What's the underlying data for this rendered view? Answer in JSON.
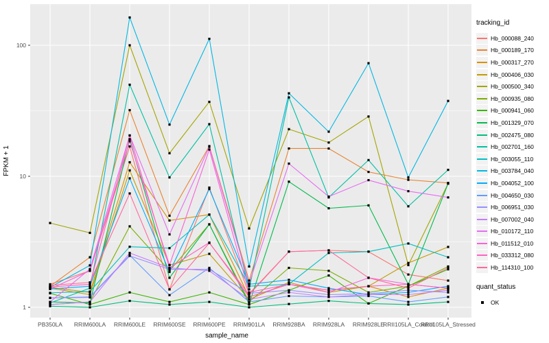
{
  "figure": {
    "bg": "#FFFFFF",
    "panel_bg": "#EBEBEB",
    "grid_color": "#FFFFFF",
    "axis_text_color": "#4D4D4D",
    "tick_color": "#333333",
    "point_color": "#000000"
  },
  "legend": {
    "tracking_title": "tracking_id",
    "quant_title": "quant_status",
    "quant_items": [
      {
        "label": "OK"
      }
    ]
  },
  "chart_data": {
    "type": "line",
    "xlabel": "sample_name",
    "ylabel": "FPKM + 1",
    "y_scale": "log10",
    "y_ticks": [
      1,
      10,
      100
    ],
    "y_tick_labels": [
      "1",
      "10",
      "100"
    ],
    "y_minor_ticks": [
      3.162,
      31.62
    ],
    "ylim_log": [
      -0.08,
      2.32
    ],
    "grid": true,
    "legend_position": "right",
    "marker": "square",
    "categories": [
      "PB350LA",
      "RRIM600LA",
      "RRIM600LE",
      "RRIM600SE",
      "RRIM600PE",
      "RRIM901LA",
      "RRIM928BA",
      "RRIM928LA",
      "RRIM928LE",
      "RRII105LA_Control",
      "RRII105LA_Stressed"
    ],
    "series": [
      {
        "name": "Hb_000088_240",
        "color": "#F8766D",
        "values": [
          1.5,
          1.9,
          16.9,
          1.37,
          8.2,
          1.27,
          2.66,
          2.72,
          2.66,
          1.78,
          1.6
        ]
      },
      {
        "name": "Hb_000189_170",
        "color": "#EA8331",
        "values": [
          1.45,
          2.41,
          32.0,
          5.0,
          17.0,
          1.6,
          16.3,
          16.3,
          10.8,
          9.4,
          8.9
        ]
      },
      {
        "name": "Hb_000317_270",
        "color": "#D89000",
        "values": [
          1.42,
          1.3,
          12.8,
          4.6,
          5.1,
          1.2,
          1.5,
          1.35,
          1.45,
          1.2,
          1.4
        ]
      },
      {
        "name": "Hb_000406_030",
        "color": "#C09B00",
        "values": [
          1.4,
          1.25,
          11.1,
          2.1,
          2.56,
          1.15,
          1.55,
          1.3,
          1.45,
          2.18,
          2.89
        ]
      },
      {
        "name": "Hb_000500_340",
        "color": "#A3A500",
        "values": [
          4.4,
          3.7,
          100.0,
          15.0,
          37.0,
          4.0,
          22.9,
          18.1,
          28.6,
          2.1,
          8.8
        ]
      },
      {
        "name": "Hb_000935_080",
        "color": "#7CAE00",
        "values": [
          1.05,
          1.1,
          4.15,
          1.9,
          4.3,
          1.1,
          2.0,
          1.9,
          1.3,
          1.45,
          2.05
        ]
      },
      {
        "name": "Hb_000941_060",
        "color": "#39B600",
        "values": [
          1.28,
          1.05,
          1.3,
          1.1,
          1.3,
          1.05,
          1.35,
          1.75,
          1.07,
          1.45,
          1.95
        ]
      },
      {
        "name": "Hb_001329_070",
        "color": "#00BB4E",
        "values": [
          1.1,
          1.08,
          19.2,
          1.68,
          4.3,
          1.06,
          9.1,
          5.7,
          6.0,
          1.5,
          8.8
        ]
      },
      {
        "name": "Hb_002475_080",
        "color": "#00BF7D",
        "values": [
          1.02,
          1.0,
          1.12,
          1.05,
          1.1,
          1.0,
          1.06,
          1.12,
          1.07,
          1.05,
          1.1
        ]
      },
      {
        "name": "Hb_002701_160",
        "color": "#00C1A3",
        "values": [
          1.08,
          1.4,
          50.0,
          9.8,
          25.0,
          1.37,
          40.0,
          6.9,
          13.3,
          5.9,
          11.2
        ]
      },
      {
        "name": "Hb_003055_110",
        "color": "#00BFC4",
        "values": [
          1.29,
          1.32,
          2.9,
          2.83,
          5.1,
          1.45,
          1.5,
          2.6,
          2.66,
          3.07,
          2.41
        ]
      },
      {
        "name": "Hb_003784_040",
        "color": "#00B8E3",
        "values": [
          1.42,
          2.09,
          163.0,
          24.8,
          112.0,
          2.05,
          43.0,
          21.9,
          73.0,
          9.8,
          37.6
        ]
      },
      {
        "name": "Hb_004052_100",
        "color": "#00ACFC",
        "values": [
          1.38,
          1.45,
          9.65,
          1.86,
          8.0,
          1.5,
          1.62,
          1.4,
          1.25,
          1.3,
          1.45
        ]
      },
      {
        "name": "Hb_004650_030",
        "color": "#619CFF",
        "values": [
          1.18,
          1.2,
          2.5,
          1.24,
          2.0,
          1.1,
          1.22,
          1.2,
          1.22,
          1.1,
          1.2
        ]
      },
      {
        "name": "Hb_006951_030",
        "color": "#9590FF",
        "values": [
          1.18,
          1.19,
          2.47,
          1.95,
          1.95,
          1.28,
          1.35,
          1.25,
          1.27,
          1.35,
          1.3
        ]
      },
      {
        "name": "Hb_007002_040",
        "color": "#C77CFF",
        "values": [
          1.05,
          1.1,
          2.6,
          2.0,
          1.9,
          1.15,
          1.3,
          1.2,
          1.25,
          1.25,
          1.35
        ]
      },
      {
        "name": "Hb_010172_110",
        "color": "#E76BF3",
        "values": [
          1.1,
          1.96,
          20.5,
          3.6,
          16.8,
          1.52,
          12.5,
          7.0,
          9.35,
          7.7,
          6.9
        ]
      },
      {
        "name": "Hb_011512_010",
        "color": "#FA62DB",
        "values": [
          1.38,
          1.9,
          18.5,
          2.1,
          16.0,
          1.3,
          1.5,
          1.3,
          1.68,
          1.5,
          1.4
        ]
      },
      {
        "name": "Hb_033312_080",
        "color": "#FF61C3",
        "values": [
          1.43,
          1.5,
          20.5,
          2.0,
          3.12,
          1.2,
          1.5,
          1.35,
          1.45,
          1.5,
          1.4
        ]
      },
      {
        "name": "Hb_114310_100",
        "color": "#FF689E",
        "values": [
          1.47,
          1.55,
          7.4,
          1.37,
          3.1,
          1.25,
          2.66,
          2.72,
          1.68,
          1.4,
          2.0
        ]
      }
    ],
    "quant_status_all_points": "OK"
  }
}
